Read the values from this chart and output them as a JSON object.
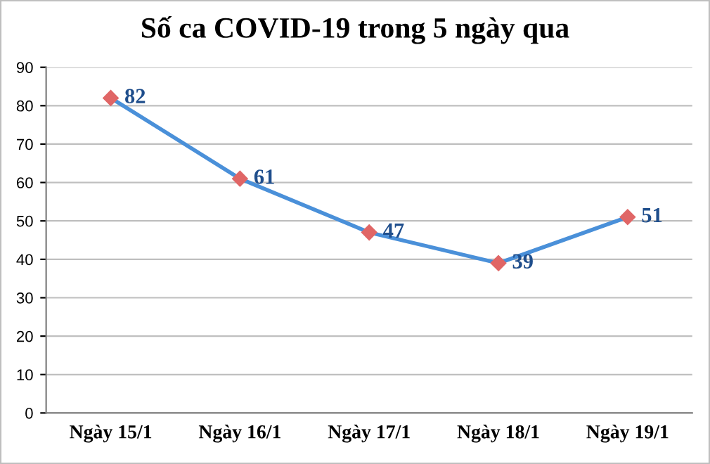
{
  "chart_data": {
    "type": "line",
    "title": "Số ca COVID-19 trong 5 ngày qua",
    "categories": [
      "Ngày 15/1",
      "Ngày 16/1",
      "Ngày 17/1",
      "Ngày 18/1",
      "Ngày 19/1"
    ],
    "series": [
      {
        "color": "#4a90d9",
        "colors": [
          "#e06666",
          "#e06666",
          "#e06666",
          "#e06666",
          "#e06666"
        ],
        "values": [
          82,
          61,
          47,
          39,
          51
        ]
      }
    ],
    "ylim": [
      0,
      90
    ],
    "yticks": [
      0,
      10,
      20,
      30,
      40,
      50,
      60,
      70,
      80,
      90
    ],
    "grid": "y",
    "marker": "diamond",
    "line_style": "solid",
    "data_labels": true,
    "legend": false
  }
}
